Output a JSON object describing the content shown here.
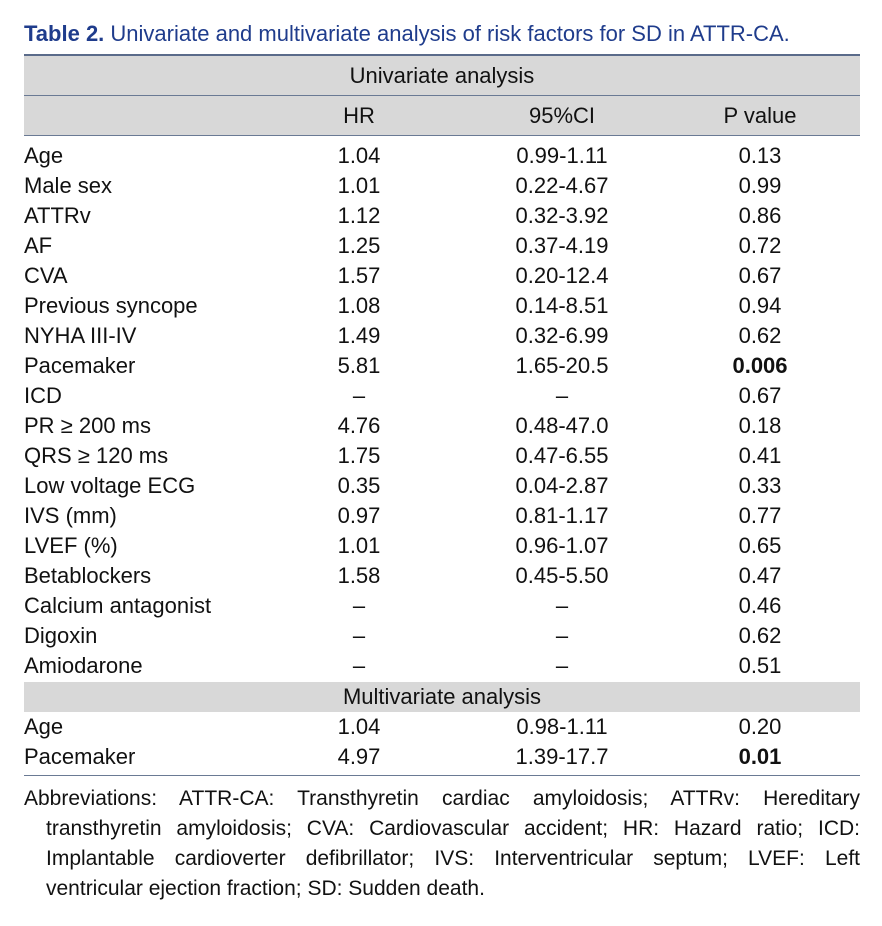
{
  "caption": {
    "label": "Table 2.",
    "text": "Univariate and multivariate analysis of risk factors for SD in ATTR-CA."
  },
  "univariate": {
    "title": "Univariate analysis",
    "headers": [
      "",
      "HR",
      "95%CI",
      "P  value"
    ],
    "rows": [
      {
        "name": "Age",
        "hr": "1.04",
        "ci": "0.99-1.11",
        "p": "0.13",
        "bold": false
      },
      {
        "name": "Male sex",
        "hr": "1.01",
        "ci": "0.22-4.67",
        "p": "0.99",
        "bold": false
      },
      {
        "name": "ATTRv",
        "hr": "1.12",
        "ci": "0.32-3.92",
        "p": "0.86",
        "bold": false
      },
      {
        "name": "AF",
        "hr": "1.25",
        "ci": "0.37-4.19",
        "p": "0.72",
        "bold": false
      },
      {
        "name": "CVA",
        "hr": "1.57",
        "ci": "0.20-12.4",
        "p": "0.67",
        "bold": false
      },
      {
        "name": "Previous syncope",
        "hr": "1.08",
        "ci": "0.14-8.51",
        "p": "0.94",
        "bold": false
      },
      {
        "name": "NYHA III-IV",
        "hr": "1.49",
        "ci": "0.32-6.99",
        "p": "0.62",
        "bold": false
      },
      {
        "name": "Pacemaker",
        "hr": "5.81",
        "ci": "1.65-20.5",
        "p": "0.006",
        "bold": true
      },
      {
        "name": "ICD",
        "hr": "–",
        "ci": "–",
        "p": "0.67",
        "bold": false
      },
      {
        "name": "PR ≥ 200 ms",
        "hr": "4.76",
        "ci": "0.48-47.0",
        "p": "0.18",
        "bold": false
      },
      {
        "name": "QRS ≥ 120 ms",
        "hr": "1.75",
        "ci": "0.47-6.55",
        "p": "0.41",
        "bold": false
      },
      {
        "name": "Low voltage ECG",
        "hr": "0.35",
        "ci": "0.04-2.87",
        "p": "0.33",
        "bold": false
      },
      {
        "name": "IVS (mm)",
        "hr": "0.97",
        "ci": "0.81-1.17",
        "p": "0.77",
        "bold": false
      },
      {
        "name": "LVEF (%)",
        "hr": "1.01",
        "ci": "0.96-1.07",
        "p": "0.65",
        "bold": false
      },
      {
        "name": "Betablockers",
        "hr": "1.58",
        "ci": "0.45-5.50",
        "p": "0.47",
        "bold": false
      },
      {
        "name": "Calcium antagonist",
        "hr": "–",
        "ci": "–",
        "p": "0.46",
        "bold": false
      },
      {
        "name": "Digoxin",
        "hr": "–",
        "ci": "–",
        "p": "0.62",
        "bold": false
      },
      {
        "name": "Amiodarone",
        "hr": "–",
        "ci": "–",
        "p": "0.51",
        "bold": false
      }
    ]
  },
  "multivariate": {
    "title": "Multivariate analysis",
    "rows": [
      {
        "name": "Age",
        "hr": "1.04",
        "ci": "0.98-1.11",
        "p": "0.20",
        "bold": false
      },
      {
        "name": "Pacemaker",
        "hr": "4.97",
        "ci": "1.39-17.7",
        "p": "0.01",
        "bold": true
      }
    ]
  },
  "footnote": "Abbreviations: ATTR-CA: Transthyretin cardiac amyloidosis; ATTRv: Hereditary transthyretin amyloidosis; CVA: Cardiovascular accident; HR: Hazard ratio; ICD: Implantable cardioverter defibrillator; IVS: Interventricular septum; LVEF: Left ventricular ejection fraction; SD: Sudden death."
}
